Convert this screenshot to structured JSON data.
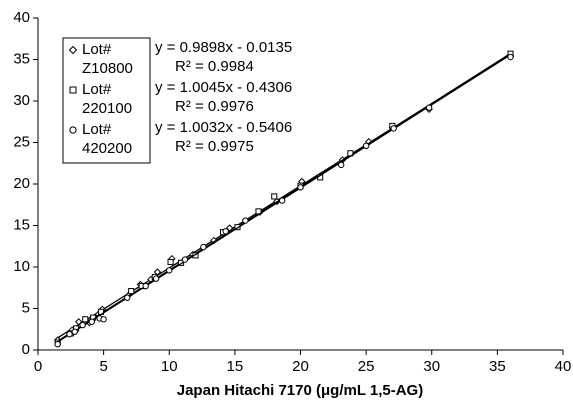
{
  "chart_data": {
    "type": "scatter",
    "x_label": "Japan Hitachi 7170 (μg/mL 1,5-AG)",
    "xlim": [
      0,
      40
    ],
    "xticks": [
      0,
      5,
      10,
      15,
      20,
      25,
      30,
      35,
      40
    ],
    "ylim": [
      0,
      40
    ],
    "yticks": [
      0,
      5,
      10,
      15,
      20,
      25,
      30,
      35,
      40
    ],
    "grid": false,
    "series": [
      {
        "name": "Lot#",
        "label": "Z10800",
        "marker": "diamond",
        "color": "#000000",
        "equation": "y = 0.9898x - 0.0135",
        "r2": "R² = 0.9984",
        "slope": 0.9898,
        "intercept": -0.0135,
        "x": [
          1.5,
          2.6,
          3.1,
          3.9,
          4.6,
          4.9,
          6.9,
          7.8,
          8.6,
          9.1,
          10.2,
          11.8,
          13.4,
          14.6,
          16.9,
          18.2,
          20.1,
          23.2,
          25.2,
          27.0,
          29.8,
          36.0
        ],
        "y": [
          1.2,
          2.4,
          3.4,
          3.3,
          4.3,
          4.9,
          6.6,
          7.9,
          8.5,
          9.4,
          11.0,
          11.5,
          13.2,
          14.7,
          16.6,
          17.9,
          20.3,
          22.9,
          25.1,
          26.8,
          29.0,
          35.4
        ]
      },
      {
        "name": "Lot#",
        "label": "220100",
        "marker": "square",
        "color": "#000000",
        "equation": "y = 1.0045x - 0.4306",
        "r2": "R² = 0.9976",
        "slope": 1.0045,
        "intercept": -0.4306,
        "x": [
          1.5,
          2.5,
          2.9,
          3.6,
          4.2,
          4.8,
          7.1,
          7.9,
          8.9,
          10.1,
          10.9,
          12.0,
          14.1,
          15.2,
          16.8,
          18.0,
          20.0,
          21.5,
          23.8,
          27.0,
          36.0
        ],
        "y": [
          0.9,
          2.0,
          2.6,
          3.7,
          3.9,
          4.6,
          7.1,
          7.7,
          8.8,
          10.6,
          10.5,
          11.4,
          14.2,
          14.8,
          16.7,
          18.5,
          19.8,
          20.8,
          23.7,
          27.0,
          35.7
        ]
      },
      {
        "name": "Lot#",
        "label": "420200",
        "marker": "circle",
        "color": "#000000",
        "equation": "y = 1.0032x - 0.5406",
        "r2": "R² = 0.9975",
        "slope": 1.0032,
        "intercept": -0.5406,
        "x": [
          1.5,
          2.4,
          2.8,
          3.4,
          4.1,
          4.7,
          5.0,
          6.8,
          8.2,
          9.0,
          10.0,
          11.2,
          12.6,
          14.3,
          15.8,
          18.6,
          20.0,
          23.1,
          25.0,
          27.1,
          29.8,
          36.0
        ],
        "y": [
          0.7,
          1.9,
          2.2,
          3.0,
          3.4,
          3.8,
          3.7,
          6.3,
          7.7,
          8.6,
          9.6,
          10.9,
          12.4,
          14.3,
          15.6,
          18.0,
          19.6,
          22.3,
          24.6,
          26.7,
          29.2,
          35.3
        ]
      }
    ]
  }
}
